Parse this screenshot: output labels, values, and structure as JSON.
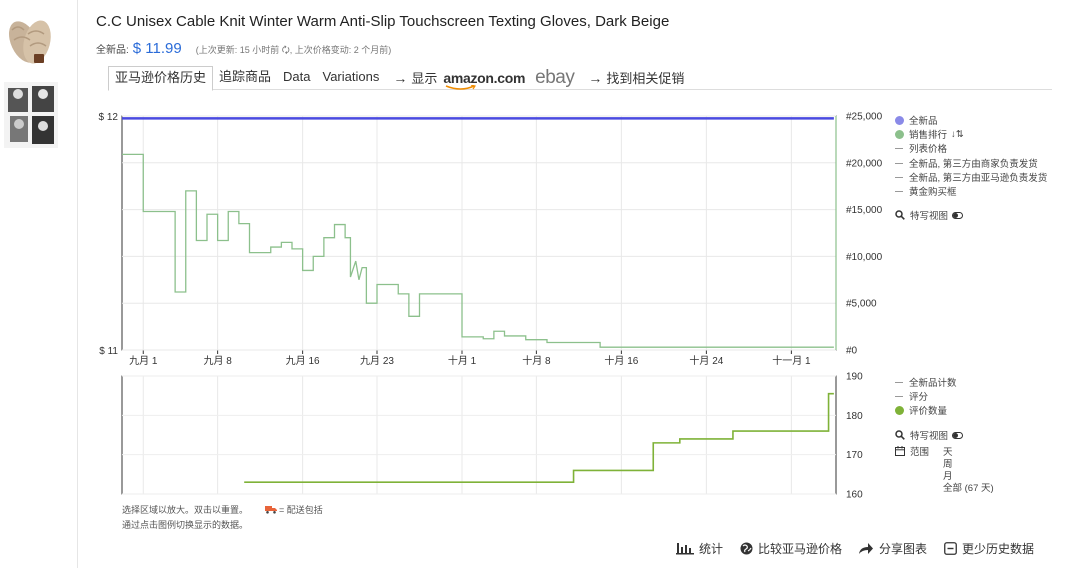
{
  "product": {
    "title": "C.C Unisex Cable Knit Winter Warm Anti-Slip Touchscreen Texting Gloves, Dark Beige",
    "price_label": "全新品:",
    "price_value": "$ 11.99",
    "update_info": "(上次更新: 15 小时前 🗘, 上次价格变动: 2 个月前)"
  },
  "tabs": {
    "price_history": "亚马逊价格历史",
    "track": "追踪商品",
    "data": "Data",
    "variations": "Variations",
    "arrow": "→",
    "show": "显示",
    "amazon": "amazon.com",
    "ebay": "ebay",
    "promotions": "找到相关促销"
  },
  "main_chart": {
    "y_left_ticks": [
      "$ 12",
      "$ 11"
    ],
    "y_right_ticks": [
      "#25,000",
      "#20,000",
      "#15,000",
      "#10,000",
      "#5,000",
      "#0"
    ],
    "x_ticks": [
      "九月 1",
      "九月 8",
      "九月 16",
      "九月 23",
      "十月 1",
      "十月 8",
      "十月 16",
      "十月 24",
      "十一月 1"
    ],
    "legend": {
      "new": "全新品",
      "sales_rank": "销售排行",
      "sort_icon": "↓⇅",
      "list_price": "列表价格",
      "new_3p_fbm": "全新品, 第三方由商家负责发货",
      "new_3p_fba": "全新品, 第三方由亚马逊负责发货",
      "buy_box": "黄金购买框"
    },
    "closeup": "特写视图"
  },
  "sub_chart": {
    "y_ticks": [
      "190",
      "180",
      "170",
      "160"
    ],
    "legend": {
      "new_count": "全新品计数",
      "rating": "评分",
      "review_count": "评价数量"
    },
    "closeup": "特写视图",
    "range_label": "范围",
    "range_options": [
      "天",
      "周",
      "月",
      "全部 (67 天)"
    ]
  },
  "notes": {
    "zoom": "选择区域以放大。双击以重置。",
    "shipping": "= 配送包括",
    "toggle_hint": "通过点击图例切换显示的数据。"
  },
  "footer": {
    "stats": "统计",
    "compare": "比较亚马逊价格",
    "share": "分享图表",
    "less_history": "更少历史数据"
  },
  "colors": {
    "new_price": "#4a4ae0",
    "sales_rank": "#8cc08c",
    "review_count": "#7fb238",
    "price_link": "#2a6bd8"
  },
  "chart_data": [
    {
      "type": "line",
      "title": "",
      "x_start_date": "2023-08-30",
      "x_unit": "days",
      "ylim_left": [
        11,
        12
      ],
      "ylim_right": [
        0,
        25000
      ],
      "grid": true,
      "legend_position": "right",
      "series": [
        {
          "name": "全新品",
          "axis": "left",
          "points": [
            [
              0,
              11.99
            ],
            [
              67,
              11.99
            ]
          ]
        },
        {
          "name": "销售排行",
          "axis": "right",
          "points": [
            [
              0,
              20900
            ],
            [
              2,
              20900
            ],
            [
              2,
              14800
            ],
            [
              5,
              14800
            ],
            [
              5,
              6200
            ],
            [
              6,
              6200
            ],
            [
              6,
              17000
            ],
            [
              7,
              17000
            ],
            [
              7,
              11700
            ],
            [
              8,
              11700
            ],
            [
              8,
              14500
            ],
            [
              9,
              14500
            ],
            [
              9,
              11700
            ],
            [
              10,
              11700
            ],
            [
              10,
              14800
            ],
            [
              11,
              14800
            ],
            [
              11,
              13500
            ],
            [
              12,
              13500
            ],
            [
              12,
              10400
            ],
            [
              14,
              10400
            ],
            [
              14,
              11000
            ],
            [
              15,
              11000
            ],
            [
              15,
              11500
            ],
            [
              16,
              11500
            ],
            [
              16,
              10800
            ],
            [
              17,
              10800
            ],
            [
              17,
              8500
            ],
            [
              18,
              8500
            ],
            [
              18,
              10000
            ],
            [
              19,
              10000
            ],
            [
              19,
              12000
            ],
            [
              20,
              12000
            ],
            [
              20,
              13400
            ],
            [
              21,
              13400
            ],
            [
              21,
              12000
            ],
            [
              21.5,
              12000
            ],
            [
              21.5,
              7800
            ],
            [
              22,
              9500
            ],
            [
              22.3,
              7500
            ],
            [
              22.6,
              8800
            ],
            [
              23,
              8800
            ],
            [
              23,
              5000
            ],
            [
              24,
              5000
            ],
            [
              24,
              7000
            ],
            [
              26,
              7000
            ],
            [
              26,
              6000
            ],
            [
              27,
              6000
            ],
            [
              27,
              3600
            ],
            [
              28,
              3600
            ],
            [
              28,
              6000
            ],
            [
              32,
              6000
            ],
            [
              32,
              1400
            ],
            [
              34,
              1400
            ],
            [
              34,
              1200
            ],
            [
              35,
              1200
            ],
            [
              35,
              2000
            ],
            [
              36,
              2000
            ],
            [
              36,
              1500
            ],
            [
              38,
              1500
            ],
            [
              38,
              1100
            ],
            [
              40,
              1100
            ],
            [
              40,
              800
            ],
            [
              45,
              800
            ],
            [
              45,
              300
            ],
            [
              67,
              300
            ]
          ]
        }
      ]
    },
    {
      "type": "line",
      "title": "",
      "x_start_date": "2023-08-30",
      "x_unit": "days",
      "ylim": [
        160,
        190
      ],
      "grid": true,
      "legend_position": "right",
      "series": [
        {
          "name": "评价数量",
          "points": [
            [
              11.5,
              163
            ],
            [
              42.5,
              163
            ],
            [
              42.5,
              166
            ],
            [
              50,
              166
            ],
            [
              50,
              173
            ],
            [
              52.5,
              173
            ],
            [
              52.5,
              174
            ],
            [
              57.5,
              174
            ],
            [
              57.5,
              176
            ],
            [
              66.5,
              176
            ],
            [
              66.5,
              185.5
            ],
            [
              67,
              185.5
            ]
          ]
        }
      ]
    }
  ]
}
